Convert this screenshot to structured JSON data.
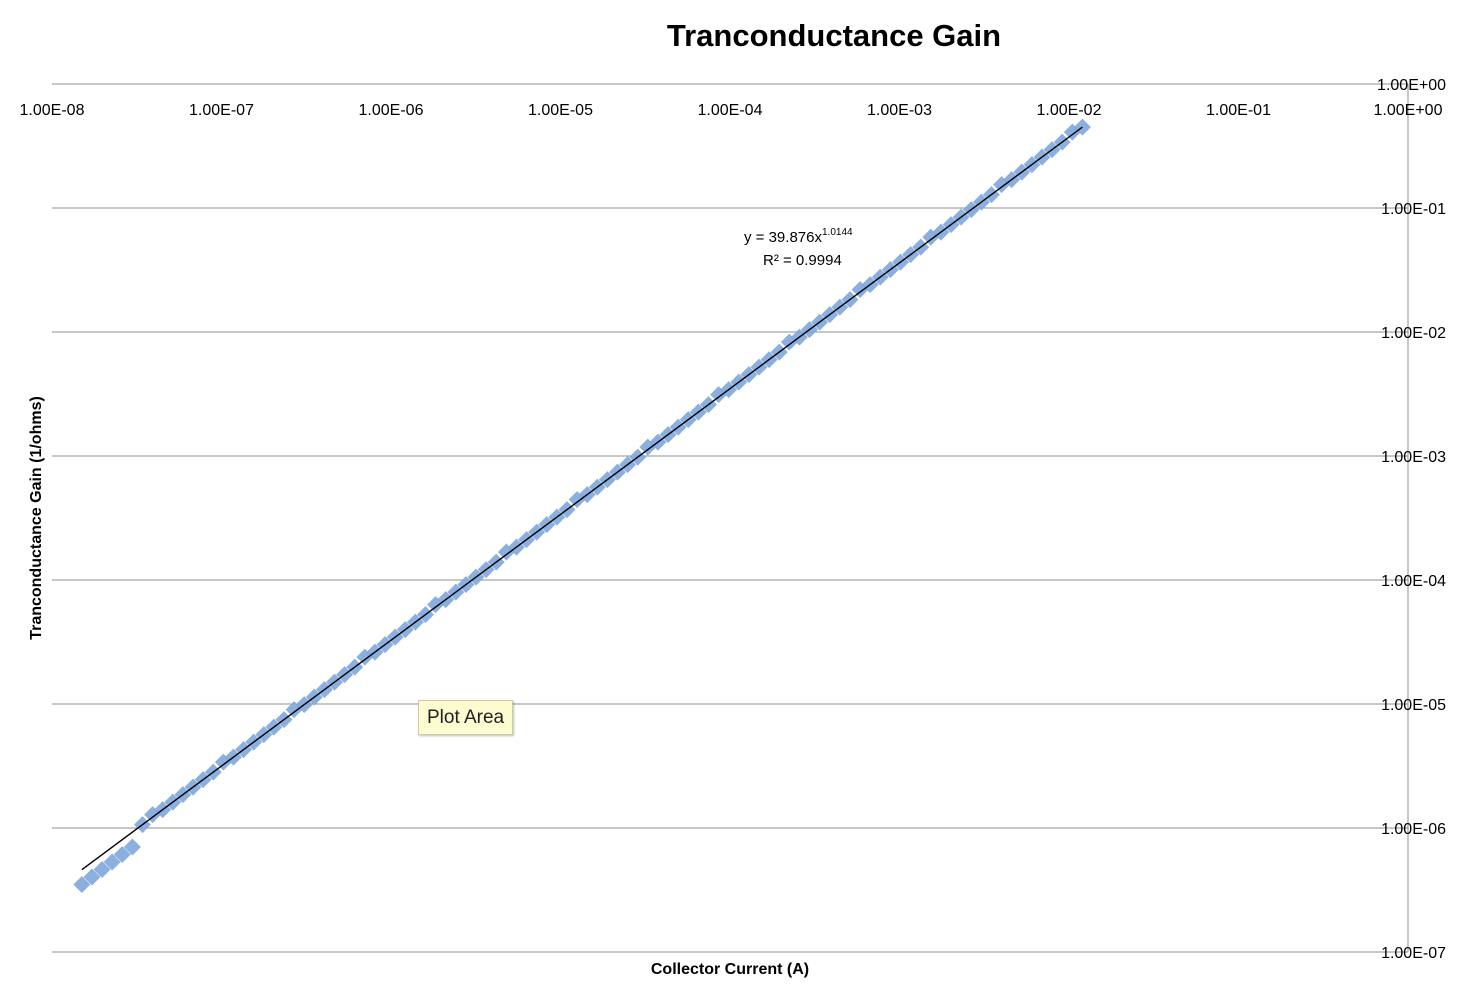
{
  "chart_data": {
    "type": "scatter",
    "title": "Tranconductance Gain",
    "xlabel": "Collector Current (A)",
    "ylabel": "Tranconductance Gain (1/ohms)",
    "x_scale": "log",
    "y_scale": "log",
    "x_tick_labels": [
      "1.00E-08",
      "1.00E-07",
      "1.00E-06",
      "1.00E-05",
      "1.00E-04",
      "1.00E-03",
      "1.00E-02",
      "1.00E-01",
      "1.00E+00"
    ],
    "y_tick_labels": [
      "1.00E-07",
      "1.00E-06",
      "1.00E-05",
      "1.00E-04",
      "1.00E-03",
      "1.00E-02",
      "1.00E-01",
      "1.00E+00"
    ],
    "xlim": [
      1e-08,
      1
    ],
    "ylim": [
      1e-07,
      1
    ],
    "grid": "horizontal",
    "legend": "none",
    "marker_color": "#7ea6dc",
    "trendline_color": "#000000",
    "x_min": 1.5e-08,
    "x_max": 0.012,
    "point_count": 100,
    "fit": {
      "a": 39.876,
      "b": 1.0144
    },
    "trendline_label": {
      "equation_prefix": "y = 39.876x",
      "equation_exponent": "1.0144",
      "r_squared": "R² = 0.9994"
    },
    "tooltip": "Plot Area"
  }
}
